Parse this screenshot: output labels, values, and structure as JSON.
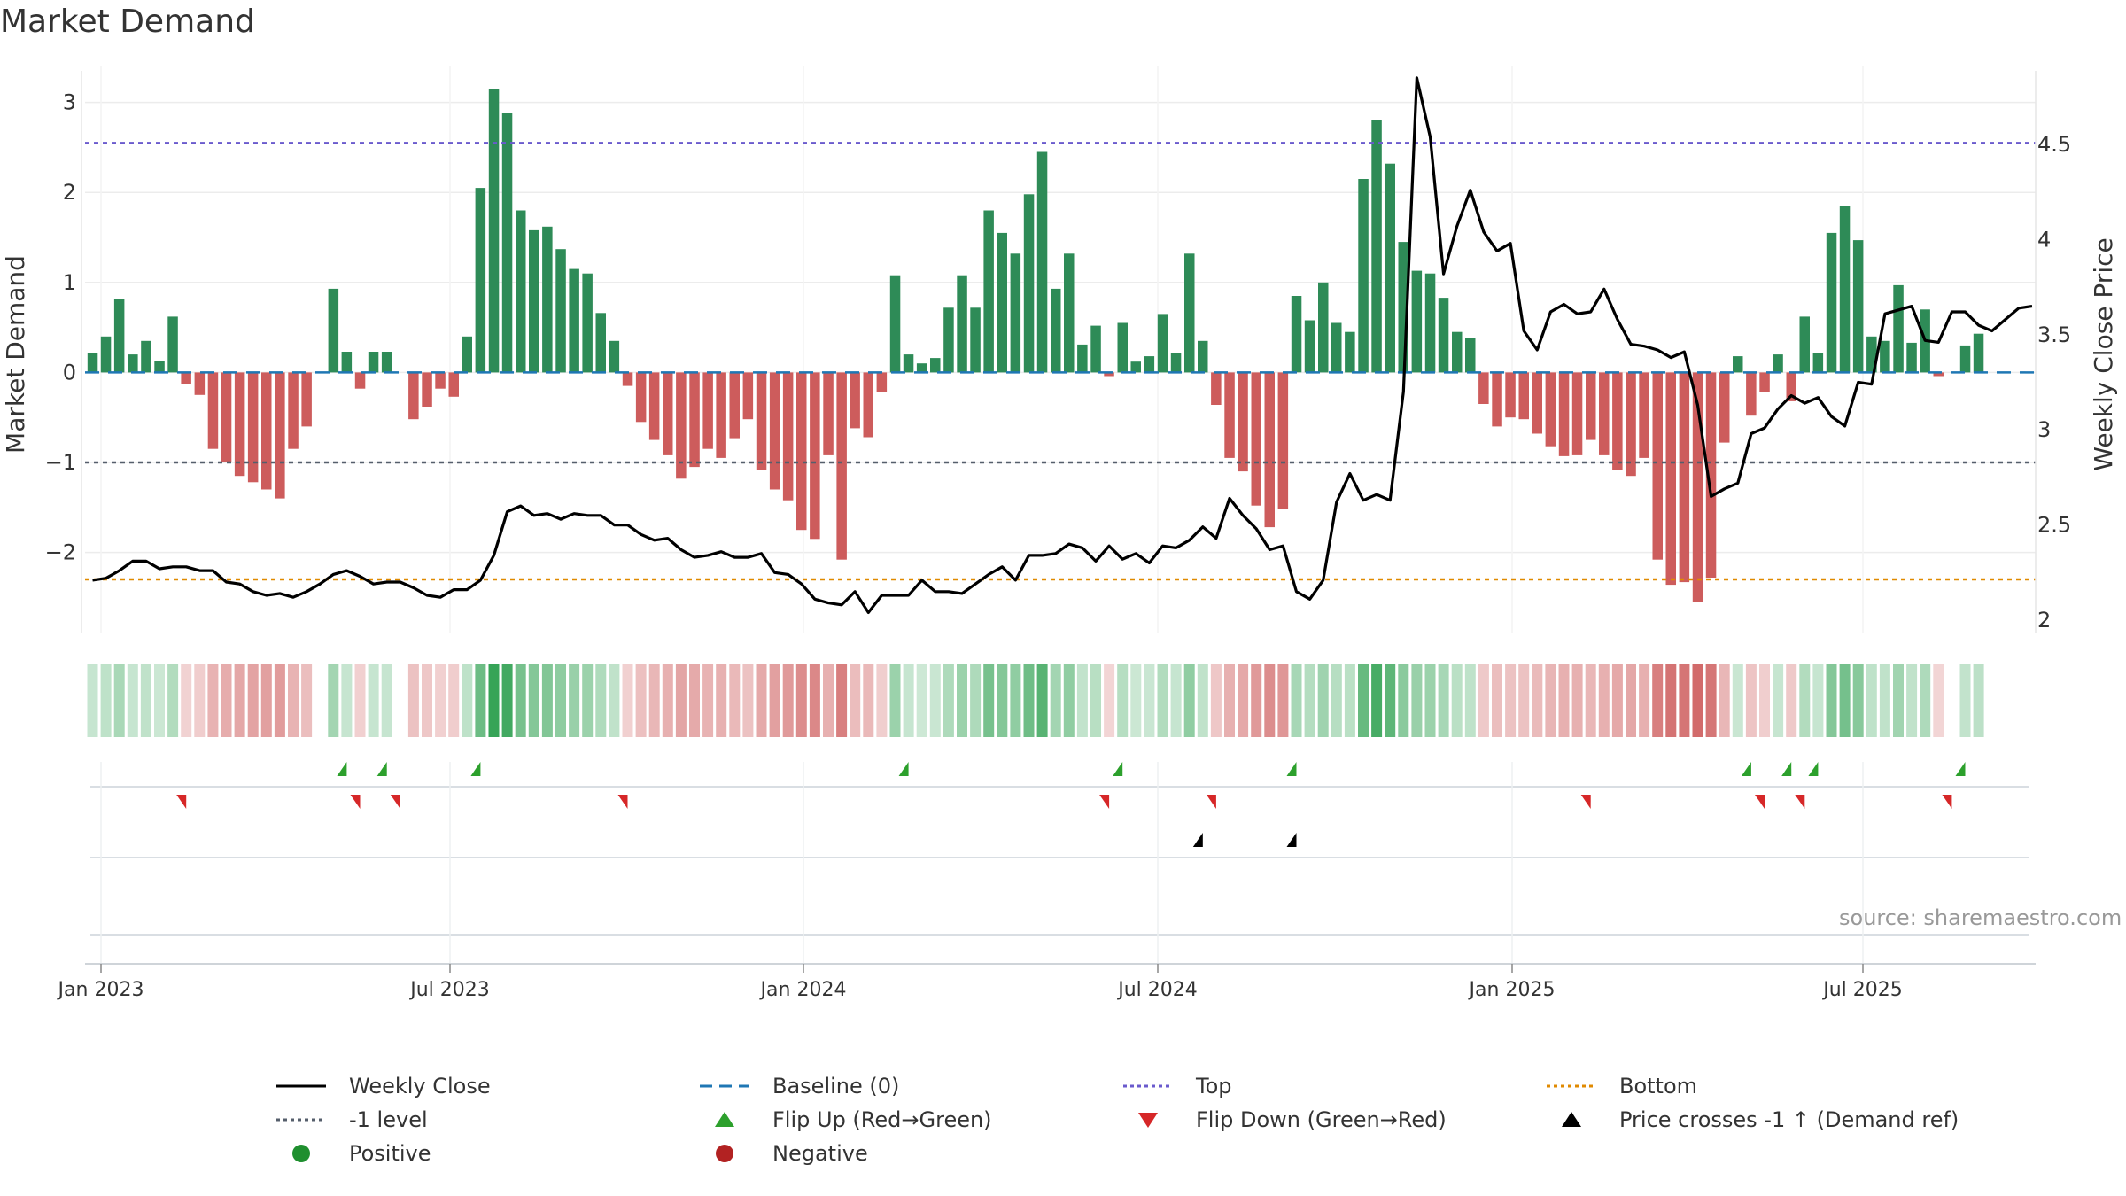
{
  "chart_data": {
    "type": "bar+line",
    "title": "Market Demand",
    "ylabel_left": "Market Demand",
    "ylabel_right": "Weekly Close Price",
    "ylim_left": [
      -2.9,
      3.4
    ],
    "yticks_left": [
      3,
      2,
      1,
      0,
      -1,
      -2
    ],
    "ytick_labels_left": [
      "3",
      "2",
      "1",
      "0",
      "−1",
      "−2"
    ],
    "ylim_right": [
      1.93,
      4.91
    ],
    "yticks_right": [
      4.5,
      4,
      3.5,
      3,
      2.5,
      2
    ],
    "ytick_labels_right": [
      "4.5",
      "4",
      "3.5",
      "3",
      "2.5",
      "2"
    ],
    "xtick_labels": [
      "Jan 2023",
      "Jul 2023",
      "Jan 2024",
      "Jul 2024",
      "Jan 2025",
      "Jul 2025"
    ],
    "top_level": 2.55,
    "bottom_level": -2.3,
    "demand_ref_level": -1,
    "demand": [
      0.22,
      0.4,
      0.82,
      0.2,
      0.35,
      0.13,
      0.62,
      -0.13,
      -0.25,
      -0.85,
      -1.0,
      -1.15,
      -1.22,
      -1.3,
      -1.4,
      -0.85,
      -0.6,
      0.0,
      0.93,
      0.23,
      -0.18,
      0.23,
      0.23,
      0.0,
      -0.52,
      -0.38,
      -0.18,
      -0.27,
      0.4,
      2.05,
      3.15,
      2.88,
      1.8,
      1.58,
      1.62,
      1.37,
      1.15,
      1.1,
      0.66,
      0.35,
      -0.15,
      -0.55,
      -0.75,
      -0.92,
      -1.18,
      -1.05,
      -0.85,
      -0.95,
      -0.73,
      -0.52,
      -1.08,
      -1.3,
      -1.42,
      -1.75,
      -1.85,
      -0.92,
      -2.08,
      -0.62,
      -0.72,
      -0.22,
      1.08,
      0.2,
      0.1,
      0.16,
      0.72,
      1.08,
      0.72,
      1.8,
      1.55,
      1.32,
      1.98,
      2.45,
      0.93,
      1.32,
      0.31,
      0.52,
      -0.04,
      0.55,
      0.12,
      0.18,
      0.65,
      0.22,
      1.32,
      0.35,
      -0.36,
      -0.95,
      -1.1,
      -1.48,
      -1.72,
      -1.52,
      0.85,
      0.58,
      1.0,
      0.55,
      0.45,
      2.15,
      2.8,
      2.32,
      1.45,
      1.13,
      1.1,
      0.83,
      0.45,
      0.38,
      -0.35,
      -0.6,
      -0.5,
      -0.52,
      -0.68,
      -0.82,
      -0.93,
      -0.92,
      -0.75,
      -0.92,
      -1.08,
      -1.15,
      -0.95,
      -2.08,
      -2.36,
      -2.33,
      -2.55,
      -2.28,
      -0.78,
      0.18,
      -0.48,
      -0.22,
      0.2,
      -0.32,
      0.62,
      0.22,
      1.55,
      1.85,
      1.47,
      0.4,
      0.35,
      0.97,
      0.33,
      0.7,
      -0.04,
      0.0,
      0.3,
      0.43
    ],
    "weekly_close": [
      2.21,
      2.22,
      2.26,
      2.31,
      2.31,
      2.27,
      2.28,
      2.28,
      2.26,
      2.26,
      2.2,
      2.19,
      2.15,
      2.13,
      2.14,
      2.12,
      2.15,
      2.19,
      2.24,
      2.26,
      2.23,
      2.19,
      2.2,
      2.2,
      2.17,
      2.13,
      2.12,
      2.16,
      2.16,
      2.21,
      2.34,
      2.57,
      2.6,
      2.55,
      2.56,
      2.53,
      2.56,
      2.55,
      2.55,
      2.5,
      2.5,
      2.45,
      2.42,
      2.43,
      2.37,
      2.33,
      2.34,
      2.36,
      2.33,
      2.33,
      2.35,
      2.25,
      2.24,
      2.19,
      2.11,
      2.09,
      2.08,
      2.15,
      2.04,
      2.13,
      2.13,
      2.13,
      2.21,
      2.15,
      2.15,
      2.14,
      2.19,
      2.24,
      2.28,
      2.21,
      2.34,
      2.34,
      2.35,
      2.4,
      2.38,
      2.31,
      2.39,
      2.32,
      2.35,
      2.3,
      2.39,
      2.38,
      2.42,
      2.49,
      2.43,
      2.64,
      2.55,
      2.48,
      2.37,
      2.39,
      2.15,
      2.11,
      2.21,
      2.62,
      2.77,
      2.63,
      2.66,
      2.63,
      3.2,
      4.85,
      4.54,
      3.82,
      4.07,
      4.26,
      4.04,
      3.94,
      3.98,
      3.52,
      3.42,
      3.62,
      3.66,
      3.61,
      3.62,
      3.74,
      3.58,
      3.45,
      3.44,
      3.42,
      3.38,
      3.41,
      3.13,
      2.65,
      2.69,
      2.72,
      2.98,
      3.01,
      3.11,
      3.18,
      3.14,
      3.17,
      3.07,
      3.02,
      3.25,
      3.24,
      3.61,
      3.63,
      3.65,
      3.47,
      3.46,
      3.62,
      3.62,
      3.55,
      3.52,
      3.58,
      3.64,
      3.65
    ],
    "flip_up_weeks": [
      19,
      22,
      29,
      61,
      77,
      90,
      124,
      127,
      129,
      140
    ],
    "flip_down_weeks": [
      7,
      20,
      23,
      40,
      76,
      84,
      112,
      125,
      128,
      139
    ],
    "price_cross_weeks": [
      83,
      90
    ],
    "legend": [
      "Weekly Close",
      "Baseline (0)",
      "Top",
      "Bottom",
      "-1 level",
      "Flip Up (Red→Green)",
      "Flip Down (Green→Red)",
      "Price crosses -1 ↑ (Demand ref)",
      "Positive",
      "Negative"
    ]
  },
  "colors": {
    "positive": "#2e8b57",
    "negative": "#cd5c5c",
    "close": "#000000",
    "baseline": "#1f77b4",
    "top": "#6a5acd",
    "bottom": "#e08a00",
    "level": "#555e6b",
    "flip_up": "#2ca02c",
    "flip_down": "#d62728",
    "cross": "#000000",
    "leg_positive": "#1f8f2f",
    "leg_negative": "#b22222"
  },
  "source": "source: sharemaestro.com"
}
